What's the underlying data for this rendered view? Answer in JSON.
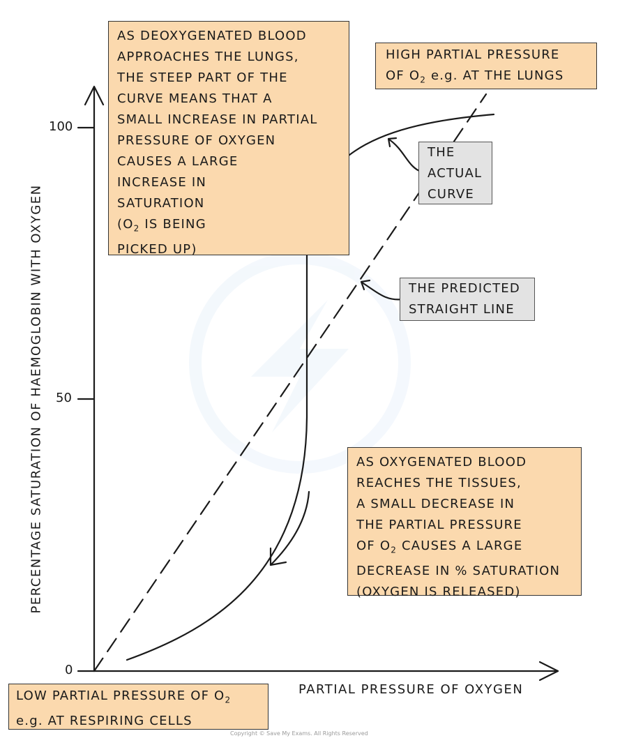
{
  "axes": {
    "y_title": "PERCENTAGE SATURATION OF HAEMOGLOBIN WITH OXYGEN",
    "x_title": "PARTIAL PRESSURE OF OXYGEN",
    "y_ticks": [
      "100",
      "50",
      "0"
    ]
  },
  "boxes": {
    "top_left": {
      "lines": [
        "AS DEOXYGENATED BLOOD",
        "APPROACHES THE LUNGS,",
        "THE STEEP PART OF THE",
        "CURVE MEANS THAT A",
        "SMALL INCREASE IN PARTIAL",
        "PRESSURE OF OXYGEN",
        "CAUSES A LARGE",
        "INCREASE IN",
        "SATURATION"
      ],
      "note_pre": "(O",
      "note_sub": "2",
      "note_post": " IS BEING",
      "last_line": "PICKED UP)"
    },
    "top_right": {
      "line1": "HIGH PARTIAL PRESSURE",
      "line2_pre": "OF O",
      "line2_sub": "2",
      "line2_post": "  e.g. AT THE LUNGS"
    },
    "bottom_right": {
      "line1": "AS OXYGENATED BLOOD",
      "line2": "REACHES THE TISSUES,",
      "line3": "A SMALL DECREASE IN",
      "line4": "THE PARTIAL PRESSURE",
      "line5_pre": "OF O",
      "line5_sub": "2",
      "line5_post": " CAUSES A LARGE",
      "line6": "DECREASE IN % SATURATION",
      "line7": "(OXYGEN IS RELEASED)"
    },
    "bottom_left": {
      "line1_pre": "LOW PARTIAL PRESSURE OF O",
      "line1_sub": "2",
      "line2": "e.g. AT RESPIRING CELLS"
    }
  },
  "tags": {
    "actual_curve": [
      "THE",
      "ACTUAL",
      "CURVE"
    ],
    "predicted_line": [
      "THE PREDICTED",
      "STRAIGHT LINE"
    ]
  },
  "copyright": "Copyright © Save My Exams. All Rights Reserved",
  "colors": {
    "box_fill": "#fbd9ae",
    "tag_fill": "#e3e3e3",
    "line": "#1a1a1a"
  }
}
